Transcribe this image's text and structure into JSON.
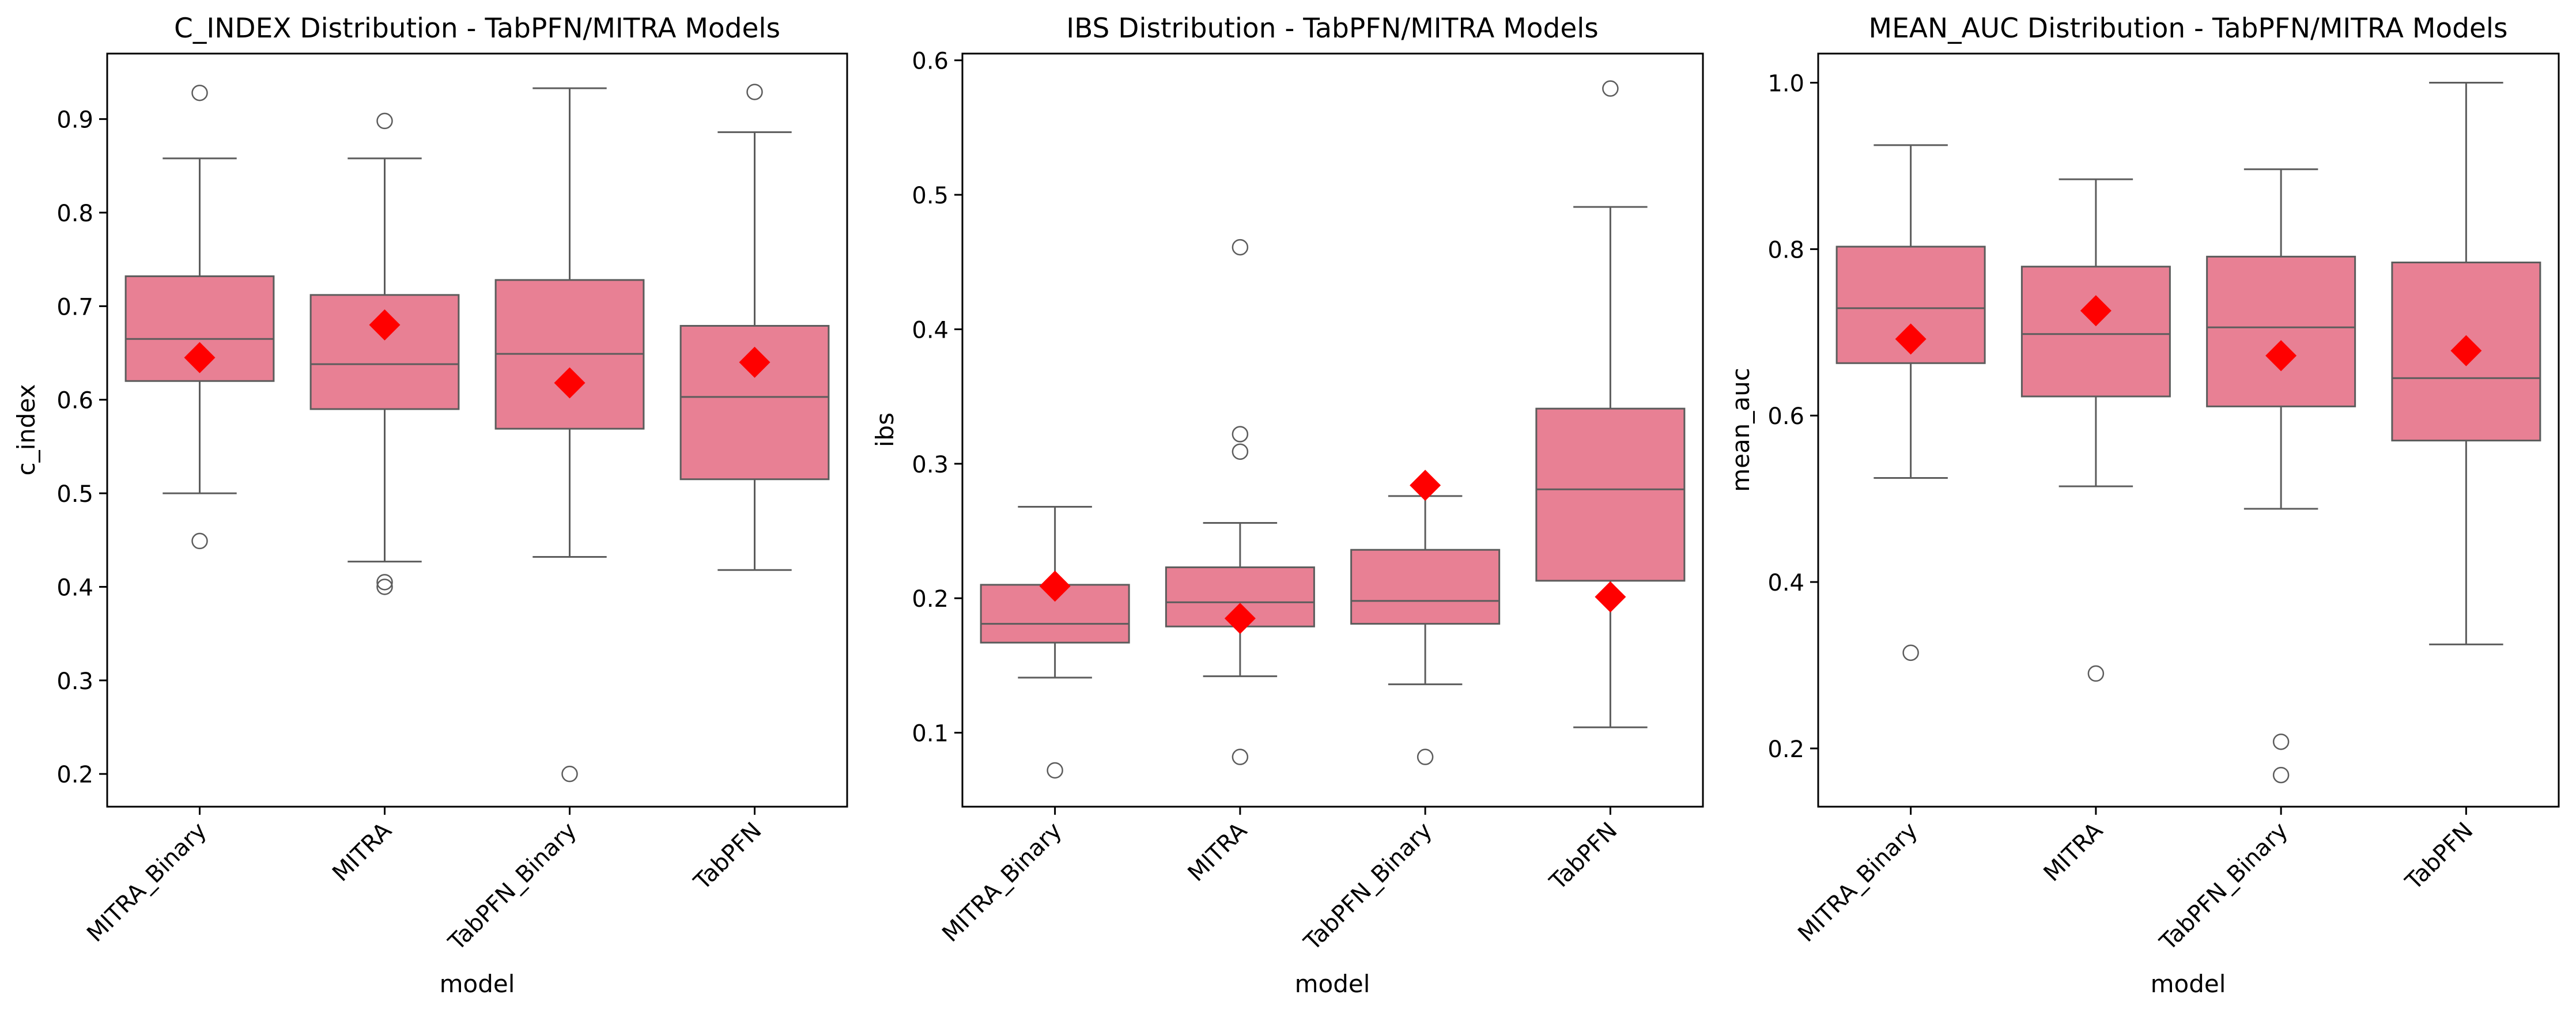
{
  "colors": {
    "box_fill": "#e88094",
    "box_edge": "#5c5c5c",
    "mean_marker": "#ff0000",
    "axis": "#000000",
    "background": "#ffffff"
  },
  "chart_data": [
    {
      "type": "box",
      "title": "C_INDEX Distribution - TabPFN/MITRA Models",
      "xlabel": "model",
      "ylabel": "c_index",
      "categories": [
        "MITRA_Binary",
        "MITRA",
        "TabPFN_Binary",
        "TabPFN"
      ],
      "ylim": [
        0.165,
        0.97
      ],
      "yticks": [
        0.2,
        0.3,
        0.4,
        0.5,
        0.6,
        0.7,
        0.8,
        0.9
      ],
      "ytick_labels": [
        "0.2",
        "0.3",
        "0.4",
        "0.5",
        "0.6",
        "0.7",
        "0.8",
        "0.9"
      ],
      "grid": false,
      "mean_marker": "red diamond",
      "boxes": [
        {
          "q1": 0.62,
          "median": 0.665,
          "q3": 0.732,
          "whisker_low": 0.5,
          "whisker_high": 0.858,
          "mean": 0.645,
          "outliers": [
            0.928,
            0.449
          ]
        },
        {
          "q1": 0.59,
          "median": 0.638,
          "q3": 0.712,
          "whisker_low": 0.427,
          "whisker_high": 0.858,
          "mean": 0.68,
          "outliers": [
            0.898,
            0.405,
            0.4
          ]
        },
        {
          "q1": 0.569,
          "median": 0.649,
          "q3": 0.728,
          "whisker_low": 0.432,
          "whisker_high": 0.933,
          "mean": 0.618,
          "outliers": [
            0.2
          ]
        },
        {
          "q1": 0.515,
          "median": 0.603,
          "q3": 0.679,
          "whisker_low": 0.418,
          "whisker_high": 0.886,
          "mean": 0.64,
          "outliers": [
            0.929
          ]
        }
      ]
    },
    {
      "type": "box",
      "title": "IBS Distribution - TabPFN/MITRA Models",
      "xlabel": "model",
      "ylabel": "ibs",
      "categories": [
        "MITRA_Binary",
        "MITRA",
        "TabPFN_Binary",
        "TabPFN"
      ],
      "ylim": [
        0.045,
        0.605
      ],
      "yticks": [
        0.1,
        0.2,
        0.3,
        0.4,
        0.5,
        0.6
      ],
      "ytick_labels": [
        "0.1",
        "0.2",
        "0.3",
        "0.4",
        "0.5",
        "0.6"
      ],
      "grid": false,
      "mean_marker": "red diamond",
      "boxes": [
        {
          "q1": 0.167,
          "median": 0.181,
          "q3": 0.21,
          "whisker_low": 0.141,
          "whisker_high": 0.268,
          "mean": 0.209,
          "outliers": [
            0.072
          ]
        },
        {
          "q1": 0.179,
          "median": 0.197,
          "q3": 0.223,
          "whisker_low": 0.142,
          "whisker_high": 0.256,
          "mean": 0.185,
          "outliers": [
            0.461,
            0.322,
            0.309,
            0.082
          ]
        },
        {
          "q1": 0.181,
          "median": 0.198,
          "q3": 0.236,
          "whisker_low": 0.136,
          "whisker_high": 0.276,
          "mean": 0.284,
          "outliers": [
            0.082
          ]
        },
        {
          "q1": 0.213,
          "median": 0.281,
          "q3": 0.341,
          "whisker_low": 0.104,
          "whisker_high": 0.491,
          "mean": 0.201,
          "outliers": [
            0.579
          ]
        }
      ]
    },
    {
      "type": "box",
      "title": "MEAN_AUC Distribution - TabPFN/MITRA Models",
      "xlabel": "model",
      "ylabel": "mean_auc",
      "categories": [
        "MITRA_Binary",
        "MITRA",
        "TabPFN_Binary",
        "TabPFN"
      ],
      "ylim": [
        0.13,
        1.035
      ],
      "yticks": [
        0.2,
        0.4,
        0.6,
        0.8,
        1.0
      ],
      "ytick_labels": [
        "0.2",
        "0.4",
        "0.6",
        "0.8",
        "1.0"
      ],
      "grid": false,
      "mean_marker": "red diamond",
      "boxes": [
        {
          "q1": 0.663,
          "median": 0.729,
          "q3": 0.803,
          "whisker_low": 0.525,
          "whisker_high": 0.925,
          "mean": 0.692,
          "outliers": [
            0.315
          ]
        },
        {
          "q1": 0.623,
          "median": 0.698,
          "q3": 0.779,
          "whisker_low": 0.515,
          "whisker_high": 0.884,
          "mean": 0.726,
          "outliers": [
            0.29
          ]
        },
        {
          "q1": 0.611,
          "median": 0.706,
          "q3": 0.791,
          "whisker_low": 0.488,
          "whisker_high": 0.896,
          "mean": 0.672,
          "outliers": [
            0.208,
            0.168
          ]
        },
        {
          "q1": 0.57,
          "median": 0.645,
          "q3": 0.784,
          "whisker_low": 0.325,
          "whisker_high": 1.0,
          "mean": 0.678,
          "outliers": []
        }
      ]
    }
  ]
}
